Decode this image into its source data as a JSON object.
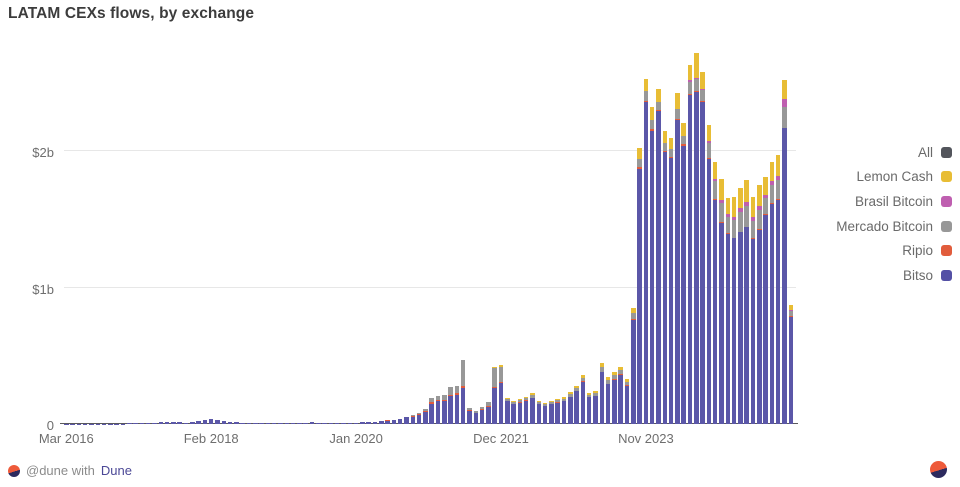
{
  "page": {
    "title": "LATAM CEXs flows, by exchange"
  },
  "footer": {
    "prefix": "@dune with",
    "link": "Dune"
  },
  "legend": {
    "items": [
      {
        "label": "All",
        "color": "#53555c"
      },
      {
        "label": "Lemon Cash",
        "color": "#e8bd35"
      },
      {
        "label": "Brasil Bitcoin",
        "color": "#bf5fb0"
      },
      {
        "label": "Mercado Bitcoin",
        "color": "#989898"
      },
      {
        "label": "Ripio",
        "color": "#e15c3c"
      },
      {
        "label": "Bitso",
        "color": "#5450a5"
      }
    ]
  },
  "chart_data": {
    "type": "bar",
    "stacked": true,
    "title": "LATAM CEXs flows, by exchange",
    "unit": "USD millions",
    "ylabel": "",
    "xlabel": "",
    "ylim": [
      0,
      2800
    ],
    "grid": "horizontal",
    "legend_position": "right",
    "y_ticks": [
      {
        "label": "$2b",
        "value": 2000
      },
      {
        "label": "$1b",
        "value": 1000
      },
      {
        "label": "0",
        "value": 0
      }
    ],
    "x_ticks": [
      {
        "label": "Mar 2016",
        "index": 0
      },
      {
        "label": "Feb 2018",
        "index": 23
      },
      {
        "label": "Jan 2020",
        "index": 46
      },
      {
        "label": "Dec 2021",
        "index": 69
      },
      {
        "label": "Nov 2023",
        "index": 92
      }
    ],
    "categories": [
      "Mar 2016",
      "Apr 2016",
      "May 2016",
      "Jun 2016",
      "Jul 2016",
      "Aug 2016",
      "Sep 2016",
      "Oct 2016",
      "Nov 2016",
      "Dec 2016",
      "Jan 2017",
      "Feb 2017",
      "Mar 2017",
      "Apr 2017",
      "May 2017",
      "Jun 2017",
      "Jul 2017",
      "Aug 2017",
      "Sep 2017",
      "Oct 2017",
      "Nov 2017",
      "Dec 2017",
      "Jan 2018",
      "Feb 2018",
      "Mar 2018",
      "Apr 2018",
      "May 2018",
      "Jun 2018",
      "Jul 2018",
      "Aug 2018",
      "Sep 2018",
      "Oct 2018",
      "Nov 2018",
      "Dec 2018",
      "Jan 2019",
      "Feb 2019",
      "Mar 2019",
      "Apr 2019",
      "May 2019",
      "Jun 2019",
      "Jul 2019",
      "Aug 2019",
      "Sep 2019",
      "Oct 2019",
      "Nov 2019",
      "Dec 2019",
      "Jan 2020",
      "Feb 2020",
      "Mar 2020",
      "Apr 2020",
      "May 2020",
      "Jun 2020",
      "Jul 2020",
      "Aug 2020",
      "Sep 2020",
      "Oct 2020",
      "Nov 2020",
      "Dec 2020",
      "Jan 2021",
      "Feb 2021",
      "Mar 2021",
      "Apr 2021",
      "May 2021",
      "Jun 2021",
      "Jul 2021",
      "Aug 2021",
      "Sep 2021",
      "Oct 2021",
      "Nov 2021",
      "Dec 2021",
      "Jan 2022",
      "Feb 2022",
      "Mar 2022",
      "Apr 2022",
      "May 2022",
      "Jun 2022",
      "Jul 2022",
      "Aug 2022",
      "Sep 2022",
      "Oct 2022",
      "Nov 2022",
      "Dec 2022",
      "Jan 2023",
      "Feb 2023",
      "Mar 2023",
      "Apr 2023",
      "May 2023",
      "Jun 2023",
      "Jul 2023",
      "Aug 2023",
      "Sep 2023",
      "Oct 2023",
      "Nov 2023",
      "Dec 2023",
      "Jan 2024",
      "Feb 2024",
      "Mar 2024",
      "Apr 2024",
      "May 2024",
      "Jun 2024",
      "Jul 2024",
      "Aug 2024",
      "Sep 2024",
      "Oct 2024",
      "Nov 2024",
      "Dec 2024",
      "Jan 2025",
      "Feb 2025",
      "Mar 2025",
      "Apr 2025",
      "May 2025",
      "Jun 2025",
      "Jul 2025",
      "Aug 2025",
      "Sep 2025",
      "Oct 2025"
    ],
    "series": [
      {
        "name": "Bitso",
        "color": "#5b57a8",
        "values": [
          1,
          1,
          1,
          2,
          2,
          2,
          2,
          3,
          3,
          3,
          4,
          4,
          5,
          6,
          8,
          12,
          16,
          15,
          12,
          10,
          15,
          22,
          28,
          35,
          30,
          22,
          16,
          12,
          10,
          8,
          7,
          7,
          9,
          8,
          6,
          6,
          7,
          9,
          11,
          12,
          10,
          8,
          7,
          7,
          8,
          9,
          11,
          13,
          14,
          16,
          21,
          24,
          30,
          36,
          50,
          55,
          66,
          90,
          150,
          165,
          165,
          205,
          215,
          265,
          95,
          80,
          105,
          125,
          265,
          300,
          165,
          145,
          155,
          170,
          190,
          145,
          130,
          145,
          155,
          165,
          195,
          240,
          310,
          195,
          205,
          380,
          290,
          325,
          360,
          280,
          760,
          1870,
          2360,
          2150,
          2290,
          1990,
          1950,
          2230,
          2040,
          2410,
          2430,
          2360,
          1940,
          1640,
          1470,
          1390,
          1360,
          1405,
          1440,
          1355,
          1425,
          1530,
          1615,
          1640,
          2165,
          785
        ]
      },
      {
        "name": "Ripio",
        "color": "#e15c3c",
        "values": [
          0,
          0,
          0,
          0,
          0,
          0,
          0,
          0,
          0,
          0,
          0,
          0,
          0,
          0,
          0,
          0,
          0,
          0,
          0,
          0,
          0,
          0,
          0,
          0,
          0,
          0,
          0,
          0,
          0,
          0,
          0,
          0,
          0,
          0,
          0,
          0,
          0,
          0,
          0,
          0,
          0,
          0,
          0,
          0,
          0,
          0,
          0,
          0,
          0,
          0,
          1,
          2,
          3,
          4,
          5,
          5,
          6,
          8,
          8,
          9,
          8,
          10,
          10,
          10,
          5,
          4,
          5,
          5,
          8,
          5,
          3,
          3,
          3,
          3,
          3,
          3,
          3,
          3,
          3,
          3,
          3,
          3,
          3,
          3,
          3,
          3,
          4,
          3,
          3,
          4,
          6,
          10,
          10,
          10,
          8,
          8,
          8,
          8,
          8,
          8,
          8,
          8,
          8,
          8,
          8,
          8,
          5,
          5,
          5,
          5,
          5,
          5,
          5,
          5,
          5,
          5
        ]
      },
      {
        "name": "Mercado Bitcoin",
        "color": "#989898",
        "values": [
          0,
          0,
          0,
          0,
          0,
          0,
          0,
          0,
          0,
          0,
          0,
          0,
          0,
          0,
          0,
          0,
          0,
          0,
          0,
          0,
          0,
          0,
          0,
          0,
          0,
          0,
          0,
          0,
          0,
          0,
          0,
          0,
          0,
          0,
          0,
          0,
          0,
          0,
          0,
          0,
          0,
          0,
          0,
          0,
          0,
          0,
          0,
          0,
          0,
          0,
          0,
          0,
          0,
          0,
          0,
          5,
          8,
          12,
          30,
          35,
          40,
          55,
          55,
          195,
          18,
          14,
          18,
          28,
          140,
          110,
          18,
          15,
          16,
          18,
          20,
          15,
          13,
          15,
          16,
          17,
          22,
          20,
          25,
          18,
          18,
          35,
          25,
          28,
          30,
          25,
          50,
          60,
          70,
          70,
          60,
          60,
          55,
          70,
          65,
          90,
          90,
          80,
          110,
          130,
          140,
          120,
          130,
          140,
          150,
          130,
          140,
          120,
          130,
          140,
          150,
          40
        ]
      },
      {
        "name": "Brasil Bitcoin",
        "color": "#bf5fb0",
        "values": [
          0,
          0,
          0,
          0,
          0,
          0,
          0,
          0,
          0,
          0,
          0,
          0,
          0,
          0,
          0,
          0,
          0,
          0,
          0,
          0,
          0,
          0,
          0,
          0,
          0,
          0,
          0,
          0,
          0,
          0,
          0,
          0,
          0,
          0,
          0,
          0,
          0,
          0,
          0,
          0,
          0,
          0,
          0,
          0,
          0,
          0,
          0,
          0,
          0,
          0,
          0,
          0,
          0,
          0,
          0,
          0,
          0,
          0,
          0,
          0,
          0,
          0,
          0,
          0,
          0,
          0,
          0,
          0,
          0,
          0,
          0,
          0,
          0,
          0,
          0,
          0,
          0,
          0,
          0,
          0,
          0,
          0,
          0,
          0,
          0,
          0,
          0,
          0,
          0,
          0,
          0,
          0,
          0,
          0,
          0,
          0,
          0,
          0,
          0,
          10,
          10,
          10,
          15,
          20,
          25,
          20,
          25,
          30,
          35,
          30,
          30,
          25,
          30,
          35,
          60,
          5
        ]
      },
      {
        "name": "Lemon Cash",
        "color": "#e8bd35",
        "values": [
          0,
          0,
          0,
          0,
          0,
          0,
          0,
          0,
          0,
          0,
          0,
          0,
          0,
          0,
          0,
          0,
          0,
          0,
          0,
          0,
          0,
          0,
          0,
          0,
          0,
          0,
          0,
          0,
          0,
          0,
          0,
          0,
          0,
          0,
          0,
          0,
          0,
          0,
          0,
          0,
          0,
          0,
          0,
          0,
          0,
          0,
          0,
          0,
          0,
          0,
          0,
          0,
          0,
          0,
          0,
          0,
          0,
          0,
          0,
          0,
          0,
          0,
          0,
          0,
          0,
          0,
          0,
          0,
          8,
          15,
          8,
          6,
          7,
          9,
          12,
          8,
          7,
          9,
          11,
          13,
          18,
          16,
          20,
          12,
          13,
          30,
          22,
          25,
          28,
          20,
          35,
          80,
          90,
          90,
          100,
          90,
          85,
          120,
          95,
          110,
          180,
          120,
          115,
          120,
          150,
          120,
          140,
          150,
          160,
          140,
          150,
          130,
          140,
          150,
          140,
          35
        ]
      }
    ]
  }
}
